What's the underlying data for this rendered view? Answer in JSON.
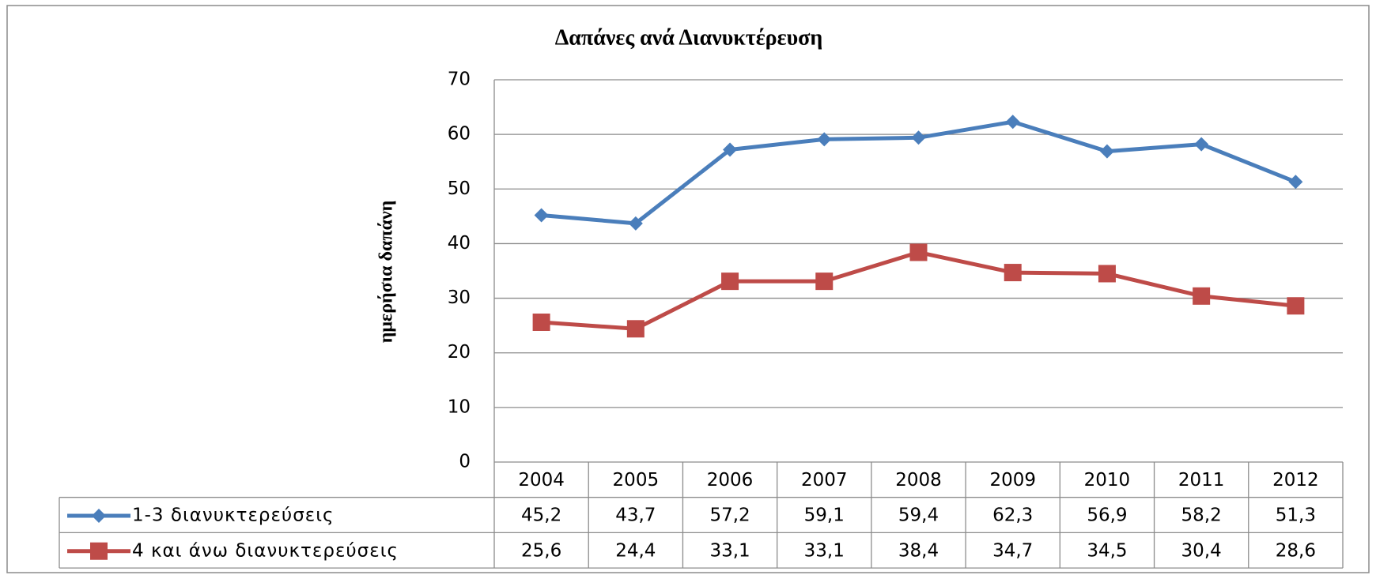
{
  "chart_data": {
    "type": "line",
    "title": "Δαπάνες ανά Διανυκτέρευση",
    "y_label": "ημερήσια δαπάνη",
    "categories": [
      "2004",
      "2005",
      "2006",
      "2007",
      "2008",
      "2009",
      "2010",
      "2011",
      "2012"
    ],
    "series": [
      {
        "name": "1-3 διανυκτερεύσεις",
        "color": "#4a7ebb",
        "marker": "diamond",
        "values": [
          45.2,
          43.7,
          57.2,
          59.1,
          59.4,
          62.3,
          56.9,
          58.2,
          51.3
        ],
        "value_labels": [
          "45,2",
          "43,7",
          "57,2",
          "59,1",
          "59,4",
          "62,3",
          "56,9",
          "58,2",
          "51,3"
        ]
      },
      {
        "name": "4 και άνω διανυκτερεύσεις",
        "color": "#be4b48",
        "marker": "square",
        "values": [
          25.6,
          24.4,
          33.1,
          33.1,
          38.4,
          34.7,
          34.5,
          30.4,
          28.6
        ],
        "value_labels": [
          "25,6",
          "24,4",
          "33,1",
          "33,1",
          "38,4",
          "34,7",
          "34,5",
          "30,4",
          "28,6"
        ]
      }
    ],
    "ylim": [
      0,
      70
    ],
    "yticks": [
      0,
      10,
      20,
      30,
      40,
      50,
      60,
      70
    ],
    "grid": true,
    "data_table": true
  }
}
